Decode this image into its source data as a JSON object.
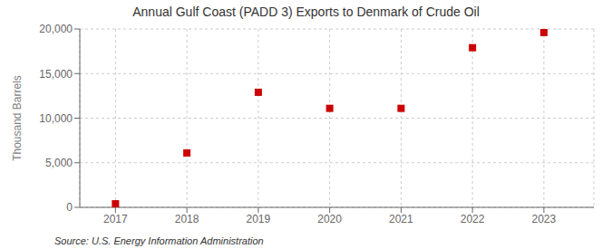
{
  "chart_data": {
    "type": "scatter",
    "title": "Annual Gulf Coast (PADD 3) Exports to Denmark of Crude Oil",
    "ylabel": "Thousand Barrels",
    "annotation": "Source: U.S. Energy Information Administration",
    "x": [
      2017,
      2018,
      2019,
      2020,
      2021,
      2022,
      2023
    ],
    "values": [
      400,
      6100,
      12900,
      11100,
      11100,
      17900,
      19600
    ],
    "color": "#cc0000",
    "marker": "square",
    "xlim": [
      2016.5,
      2023.7
    ],
    "xticks": [
      2017,
      2018,
      2019,
      2020,
      2021,
      2022,
      2023
    ],
    "ylim": [
      0,
      20000
    ],
    "yticks": [
      0,
      {
        "value": 5000,
        "label": "5,000"
      },
      {
        "value": 10000,
        "label": "10,000"
      },
      {
        "value": 15000,
        "label": "15,000"
      },
      {
        "value": 20000,
        "label": "20,000"
      }
    ],
    "grid": true
  }
}
